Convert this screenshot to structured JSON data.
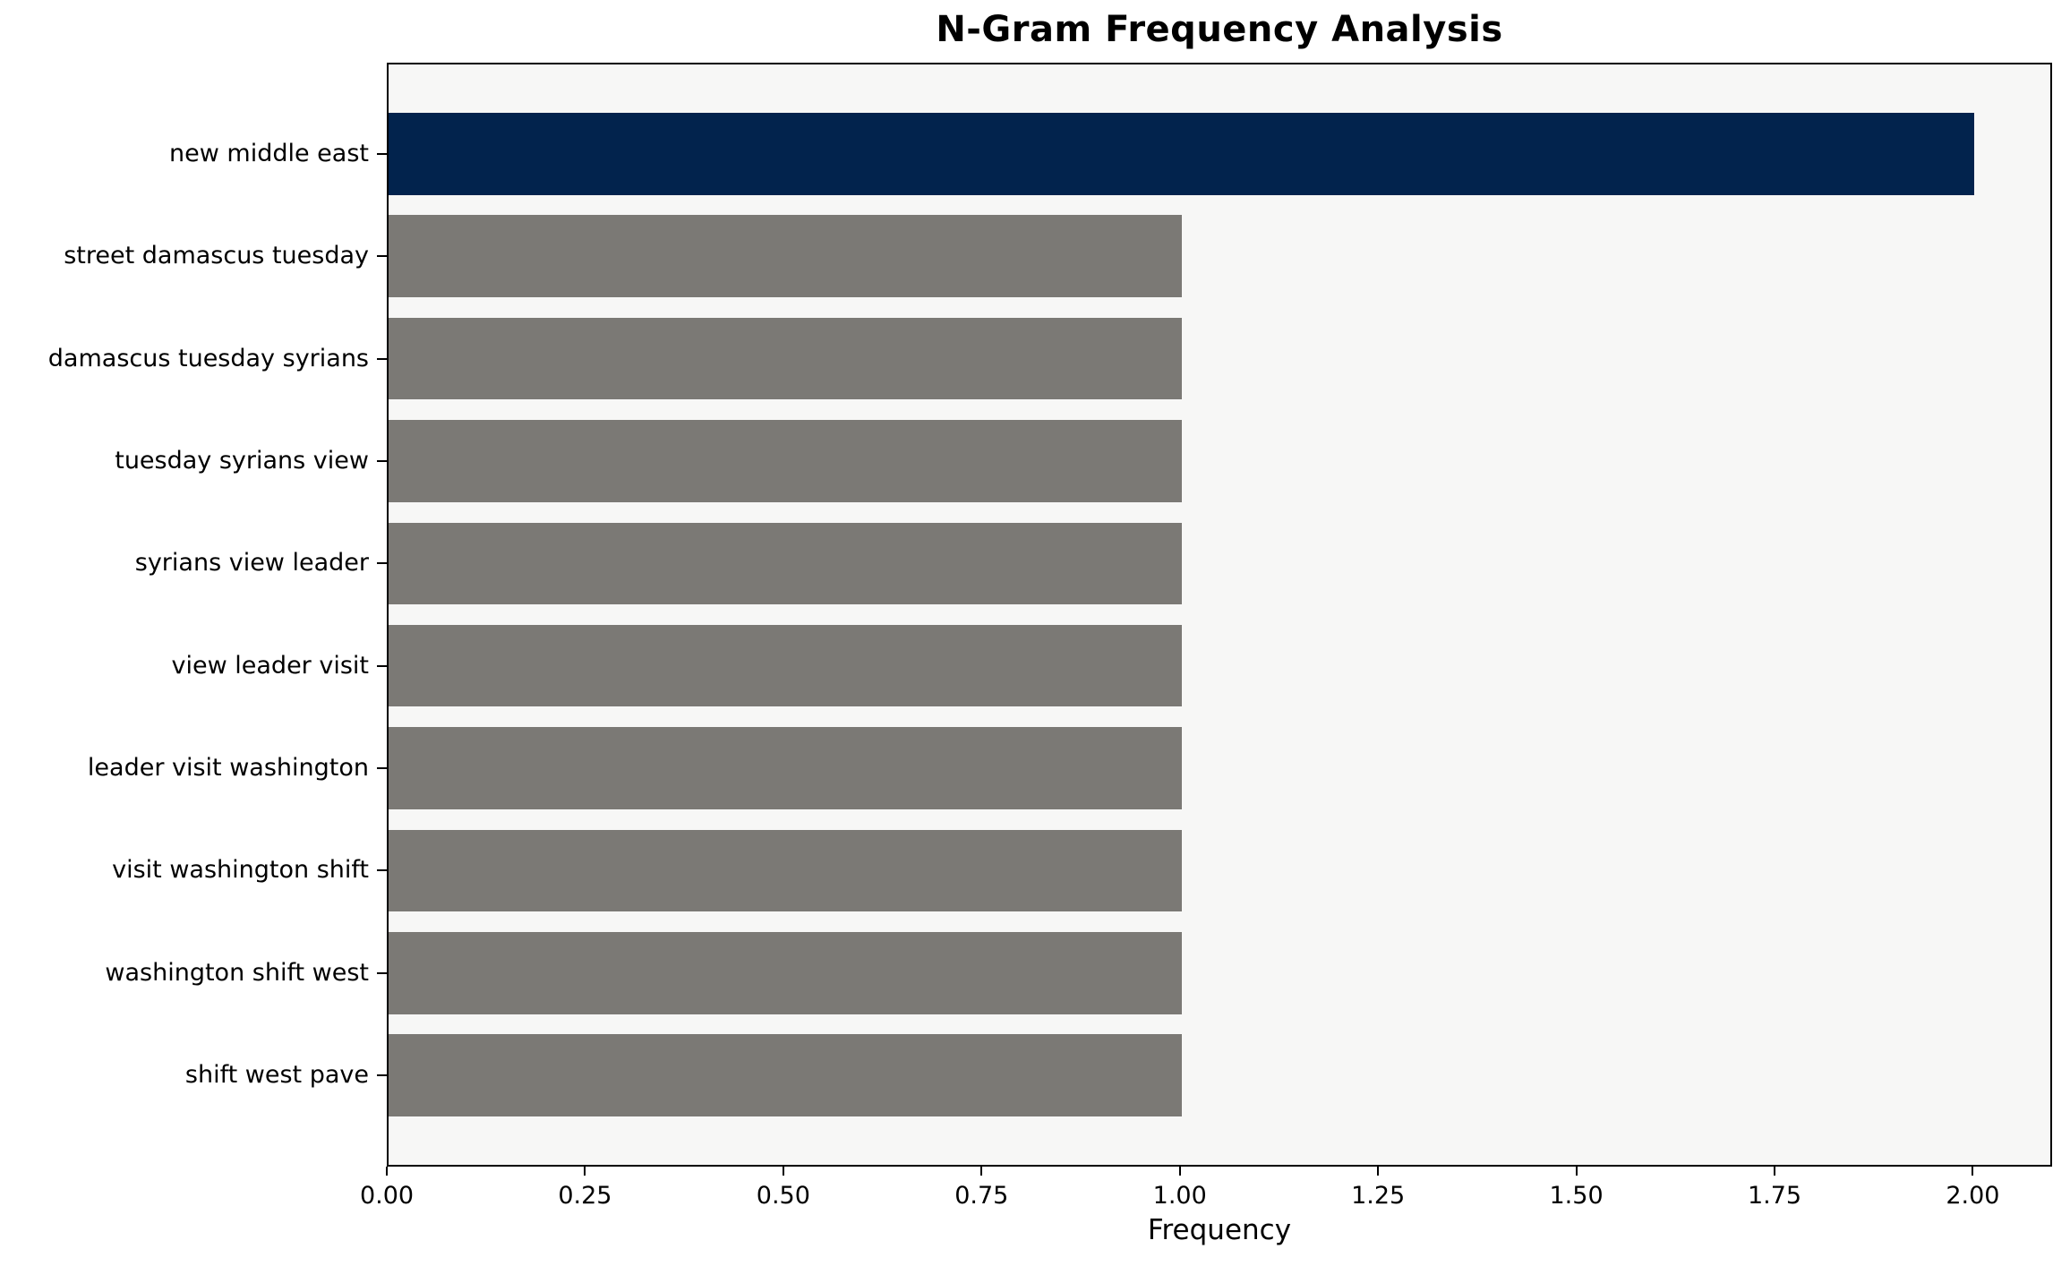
{
  "chart_data": {
    "type": "bar",
    "orientation": "horizontal",
    "title": "N-Gram Frequency Analysis",
    "xlabel": "Frequency",
    "ylabel": "",
    "categories": [
      "new middle east",
      "street damascus tuesday",
      "damascus tuesday syrians",
      "tuesday syrians view",
      "syrians view leader",
      "view leader visit",
      "leader visit washington",
      "visit washington shift",
      "washington shift west",
      "shift west pave"
    ],
    "values": [
      2,
      1,
      1,
      1,
      1,
      1,
      1,
      1,
      1,
      1
    ],
    "bar_colors": [
      "#02234d",
      "#7b7975",
      "#7b7975",
      "#7b7975",
      "#7b7975",
      "#7b7975",
      "#7b7975",
      "#7b7975",
      "#7b7975",
      "#7b7975"
    ],
    "xlim": [
      0,
      2.1
    ],
    "xticks": [
      "0.00",
      "0.25",
      "0.50",
      "0.75",
      "1.00",
      "1.25",
      "1.50",
      "1.75",
      "2.00"
    ],
    "grid": false,
    "legend": "none",
    "colors": {
      "highlight": "#02234d",
      "default_bar": "#7b7975",
      "plot_background": "#f7f7f6",
      "figure_background": "#ffffff",
      "spine": "#000000",
      "text": "#000000"
    }
  }
}
